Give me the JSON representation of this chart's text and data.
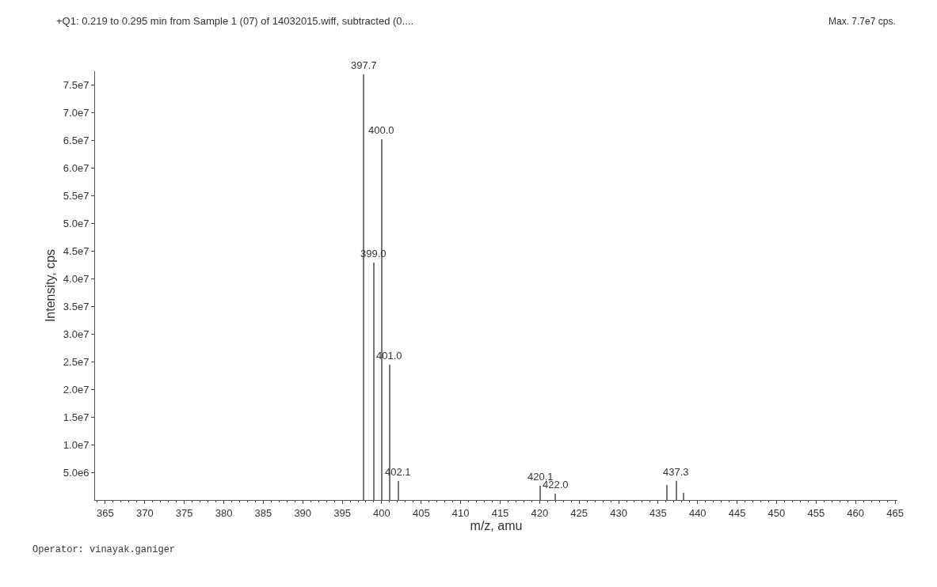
{
  "chart_data": {
    "type": "bar",
    "title": "+Q1: 0.219 to 0.295 min from Sample 1 (07) of 14032015.wiff, subtracted (0....",
    "xlabel": "m/z, amu",
    "ylabel": "Intensity, cps",
    "x": [
      397.7,
      399.0,
      400.0,
      401.0,
      402.1,
      420.1,
      422.0,
      436.1,
      437.3,
      438.2
    ],
    "series": [
      {
        "color": "#777777",
        "values": [
          77000000,
          42900000,
          65200000,
          24500000,
          3500000,
          2600000,
          1100000,
          2700000,
          3500000,
          1300000
        ]
      }
    ],
    "xlim": [
      363.7,
      465.3
    ],
    "xticks": [
      365,
      370,
      375,
      380,
      385,
      390,
      395,
      400,
      405,
      410,
      415,
      420,
      425,
      430,
      435,
      440,
      445,
      450,
      455,
      460,
      465
    ],
    "ylim": [
      0,
      77500000
    ],
    "yticks": [
      {
        "value": 5000000,
        "label": "5.0e6"
      },
      {
        "value": 10000000,
        "label": "1.0e7"
      },
      {
        "value": 15000000,
        "label": "1.5e7"
      },
      {
        "value": 20000000,
        "label": "2.0e7"
      },
      {
        "value": 25000000,
        "label": "2.5e7"
      },
      {
        "value": 30000000,
        "label": "3.0e7"
      },
      {
        "value": 35000000,
        "label": "3.5e7"
      },
      {
        "value": 40000000,
        "label": "4.0e7"
      },
      {
        "value": 45000000,
        "label": "4.5e7"
      },
      {
        "value": 50000000,
        "label": "5.0e7"
      },
      {
        "value": 55000000,
        "label": "5.5e7"
      },
      {
        "value": 60000000,
        "label": "6.0e7"
      },
      {
        "value": 65000000,
        "label": "6.5e7"
      },
      {
        "value": 70000000,
        "label": "7.0e7"
      },
      {
        "value": 75000000,
        "label": "7.5e7"
      }
    ],
    "annotations": [
      "Max. 7.7e7 cps.",
      "Operator: vinayak.ganiger",
      {
        "text": "397.7",
        "x": 397.7,
        "y": 77000000
      },
      {
        "text": "400.0",
        "x": 400.0,
        "y": 65200000
      },
      {
        "text": "399.0",
        "x": 399.0,
        "y": 42900000
      },
      {
        "text": "401.0",
        "x": 401.0,
        "y": 24500000
      },
      {
        "text": "402.1",
        "x": 402.1,
        "y": 3500000
      },
      {
        "text": "420.1",
        "x": 420.1,
        "y": 2600000
      },
      {
        "text": "422.0",
        "x": 422.0,
        "y": 1100000
      },
      {
        "text": "437.3",
        "x": 437.3,
        "y": 3500000
      }
    ]
  }
}
